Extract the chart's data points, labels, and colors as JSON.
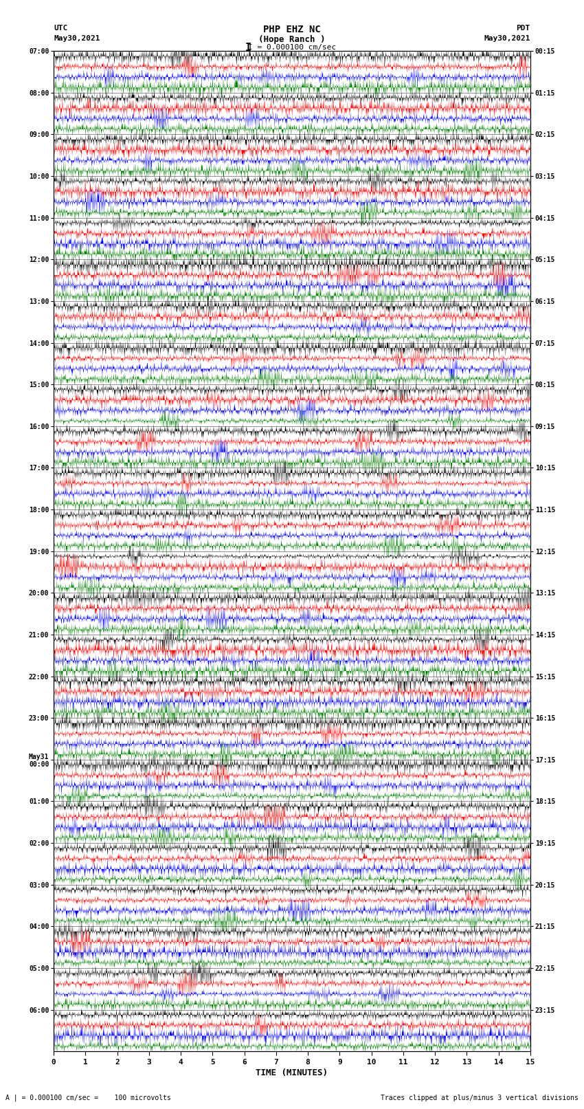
{
  "title_line1": "PHP EHZ NC",
  "title_line2": "(Hope Ranch )",
  "title_line3": "I = 0.000100 cm/sec",
  "left_header_line1": "UTC",
  "left_header_line2": "May30,2021",
  "right_header_line1": "PDT",
  "right_header_line2": "May30,2021",
  "xlabel": "TIME (MINUTES)",
  "footer_left": "A | = 0.000100 cm/sec =    100 microvolts",
  "footer_right": "Traces clipped at plus/minus 3 vertical divisions",
  "utc_labels": [
    "07:00",
    "08:00",
    "09:00",
    "10:00",
    "11:00",
    "12:00",
    "13:00",
    "14:00",
    "15:00",
    "16:00",
    "17:00",
    "18:00",
    "19:00",
    "20:00",
    "21:00",
    "22:00",
    "23:00",
    "May31\n00:00",
    "01:00",
    "02:00",
    "03:00",
    "04:00",
    "05:00",
    "06:00"
  ],
  "pdt_labels": [
    "00:15",
    "01:15",
    "02:15",
    "03:15",
    "04:15",
    "05:15",
    "06:15",
    "07:15",
    "08:15",
    "09:15",
    "10:15",
    "11:15",
    "12:15",
    "13:15",
    "14:15",
    "15:15",
    "16:15",
    "17:15",
    "18:15",
    "19:15",
    "20:15",
    "21:15",
    "22:15",
    "23:15"
  ],
  "trace_colors": [
    "black",
    "red",
    "blue",
    "green"
  ],
  "n_rows": 24,
  "traces_per_row": 4,
  "background_color": "white",
  "seed": 42,
  "n_minutes": 15,
  "samples_per_trace": 3000
}
